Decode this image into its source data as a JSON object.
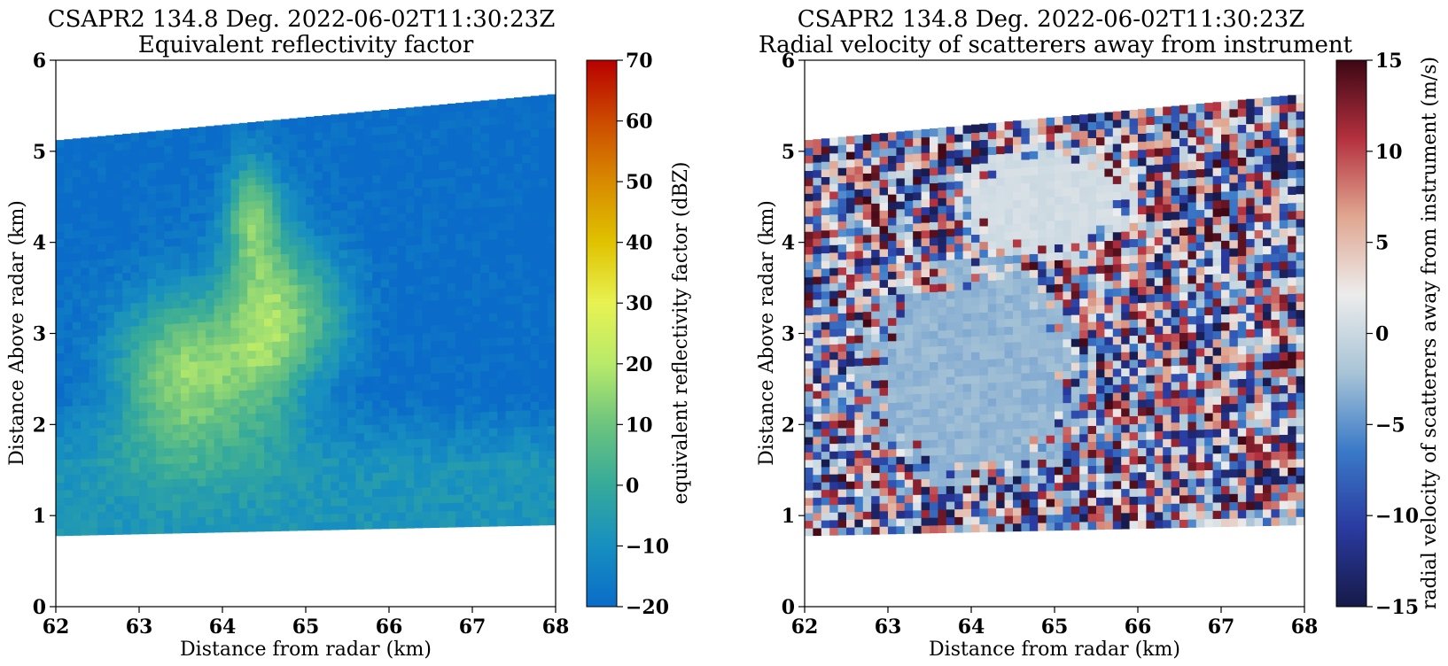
{
  "chart_data": [
    {
      "type": "heatmap",
      "title": "CSAPR2 134.8 Deg. 2022-06-02T11:30:23Z",
      "subtitle": "Equivalent reflectivity factor",
      "xlabel": "Distance from radar (km)",
      "ylabel": "Distance Above radar  (km)",
      "xlim": [
        62,
        68
      ],
      "ylim": [
        0,
        6
      ],
      "x_ticks": [
        "62",
        "63",
        "64",
        "65",
        "66",
        "67",
        "68"
      ],
      "y_ticks": [
        "0",
        "1",
        "2",
        "3",
        "4",
        "5",
        "6"
      ],
      "colorbar": {
        "label": "equivalent reflectivity factor (dBZ)",
        "range": [
          -20,
          70
        ],
        "ticks": [
          "−20",
          "−10",
          "0",
          "10",
          "20",
          "30",
          "40",
          "50",
          "60",
          "70"
        ],
        "colors": [
          "#0a6cc8",
          "#178fc0",
          "#36aa9a",
          "#6cc47e",
          "#b8ea6a",
          "#e8f252",
          "#e0c200",
          "#d88a00",
          "#cc4a00",
          "#b80000"
        ]
      },
      "data_extent": {
        "bottom_edge_km": [
          0.78,
          0.9
        ],
        "top_edge_km": [
          5.12,
          5.63
        ]
      },
      "features": [
        {
          "name": "background",
          "x": [
            62,
            68
          ],
          "y": [
            0.8,
            5.6
          ],
          "value_dbz": -20
        },
        {
          "name": "low-level echo",
          "x": [
            62,
            68
          ],
          "y": [
            0.8,
            2.3
          ],
          "value_dbz": -8
        },
        {
          "name": "main cell",
          "x": [
            62.8,
            65.9
          ],
          "y": [
            1.4,
            3.8
          ],
          "value_dbz": 15
        },
        {
          "name": "core",
          "x": [
            63.0,
            64.3
          ],
          "y": [
            2.2,
            2.8
          ],
          "value_dbz": 25
        },
        {
          "name": "tower",
          "x": [
            64.2,
            64.9
          ],
          "y": [
            2.8,
            5.1
          ],
          "value_dbz": 18
        }
      ]
    },
    {
      "type": "heatmap",
      "title": "CSAPR2 134.8 Deg. 2022-06-02T11:30:23Z",
      "subtitle": "Radial velocity of scatterers away from instrument",
      "xlabel": "Distance from radar (km)",
      "ylabel": "Distance Above radar  (km)",
      "xlim": [
        62,
        68
      ],
      "ylim": [
        0,
        6
      ],
      "x_ticks": [
        "62",
        "63",
        "64",
        "65",
        "66",
        "67",
        "68"
      ],
      "y_ticks": [
        "0",
        "1",
        "2",
        "3",
        "4",
        "5",
        "6"
      ],
      "colorbar": {
        "label": "radial velocity of scatterers away from instrument (m/s)",
        "range": [
          -15,
          15
        ],
        "ticks": [
          "−15",
          "−10",
          "−5",
          "0",
          "5",
          "10",
          "15"
        ],
        "colors": [
          "#161a48",
          "#2a3aa0",
          "#3a7ac8",
          "#a8c4d6",
          "#ececec",
          "#e0a690",
          "#b4303e",
          "#3c0714"
        ]
      },
      "data_extent": {
        "bottom_edge_km": [
          0.78,
          0.9
        ],
        "top_edge_km": [
          5.12,
          5.63
        ]
      },
      "features": [
        {
          "name": "noise region",
          "x": [
            62,
            68
          ],
          "y": [
            0.8,
            5.6
          ],
          "value_ms": "random ±15"
        },
        {
          "name": "toward-radar region",
          "x": [
            62.5,
            65.9
          ],
          "y": [
            1.0,
            3.9
          ],
          "value_ms": -3
        },
        {
          "name": "near-zero region",
          "x": [
            63.5,
            66.0
          ],
          "y": [
            3.9,
            5.2
          ],
          "value_ms": 0.5
        }
      ]
    }
  ]
}
